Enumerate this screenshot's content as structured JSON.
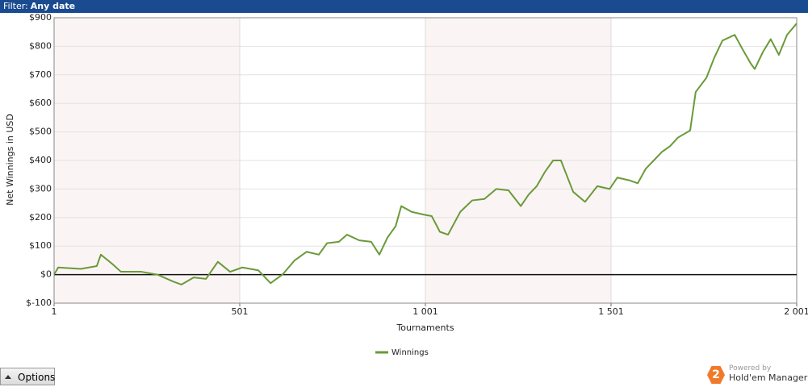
{
  "filter": {
    "label": "Filter:",
    "value": "Any date"
  },
  "chart_data": {
    "type": "line",
    "x_label": "Tournaments",
    "y_label": "Net Winnings in USD",
    "x": [
      1,
      12,
      73,
      116,
      127,
      160,
      181,
      236,
      279,
      323,
      344,
      377,
      410,
      442,
      475,
      508,
      551,
      584,
      616,
      649,
      681,
      714,
      736,
      768,
      790,
      823,
      855,
      877,
      899,
      921,
      936,
      964,
      997,
      1018,
      1040,
      1062,
      1095,
      1127,
      1160,
      1192,
      1225,
      1258,
      1279,
      1301,
      1323,
      1345,
      1366,
      1399,
      1431,
      1464,
      1497,
      1518,
      1551,
      1573,
      1594,
      1616,
      1638,
      1660,
      1681,
      1714,
      1729,
      1758,
      1779,
      1801,
      1834,
      1855,
      1877,
      1888,
      1910,
      1931,
      1953,
      1975,
      2001
    ],
    "series": [
      {
        "name": "Winnings",
        "color": "#6a9a3a",
        "values": [
          0,
          25,
          20,
          30,
          70,
          35,
          10,
          10,
          0,
          -25,
          -35,
          -10,
          -15,
          45,
          10,
          25,
          15,
          -30,
          0,
          50,
          80,
          70,
          110,
          115,
          140,
          120,
          115,
          70,
          130,
          170,
          240,
          220,
          210,
          205,
          150,
          140,
          220,
          260,
          265,
          300,
          295,
          240,
          280,
          310,
          360,
          400,
          400,
          290,
          255,
          310,
          300,
          340,
          330,
          320,
          370,
          400,
          430,
          450,
          480,
          505,
          640,
          690,
          760,
          820,
          840,
          790,
          740,
          720,
          780,
          825,
          770,
          840,
          880
        ]
      }
    ],
    "xlim": [
      1,
      2001
    ],
    "xticks": [
      1,
      501,
      {
        "value": 1001,
        "label": "1 001"
      },
      {
        "value": 1501,
        "label": "1 501"
      },
      {
        "value": 2001,
        "label": "2 001"
      }
    ],
    "ylim": [
      -100,
      900
    ],
    "yticks": [
      {
        "value": -100,
        "label": "$-100"
      },
      {
        "value": 0,
        "label": "$0"
      },
      {
        "value": 100,
        "label": "$100"
      },
      {
        "value": 200,
        "label": "$200"
      },
      {
        "value": 300,
        "label": "$300"
      },
      {
        "value": 400,
        "label": "$400"
      },
      {
        "value": 500,
        "label": "$500"
      },
      {
        "value": 600,
        "label": "$600"
      },
      {
        "value": 700,
        "label": "$700"
      },
      {
        "value": 800,
        "label": "$800"
      },
      {
        "value": 900,
        "label": "$900"
      }
    ],
    "grid": true
  },
  "options_button": "Options",
  "branding": {
    "badge": "2",
    "powered": "Powered by",
    "product": "Hold'em Manager"
  }
}
